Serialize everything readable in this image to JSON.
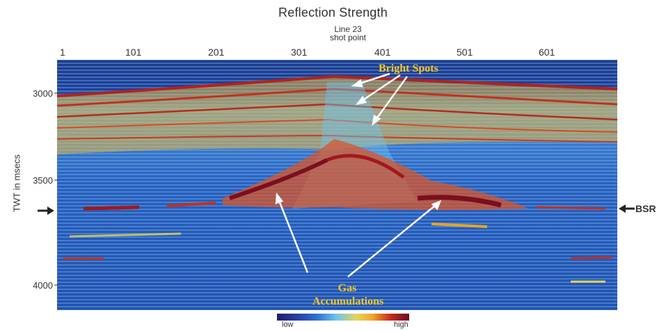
{
  "title": "Reflection Strength",
  "line_label": "Line 23",
  "shot_point_label": "shot point",
  "x_ticks": [
    "1",
    "101",
    "201",
    "301",
    "401",
    "501",
    "601"
  ],
  "y_axis_label": "TWT in msecs",
  "y_ticks": [
    "3000",
    "3500",
    "4000"
  ],
  "annotations": {
    "bright_spots": "Bright Spots",
    "gas_line1": "Gas",
    "gas_line2": "Accumulations",
    "bsr": "BSR"
  },
  "colorbar": {
    "low": "low",
    "high": "high",
    "stops": [
      "#1b1f6e",
      "#2a3fa0",
      "#2f6ed2",
      "#6fc3ef",
      "#e3d55a",
      "#f2a62b",
      "#c52a1c",
      "#6d0f2a"
    ]
  }
}
